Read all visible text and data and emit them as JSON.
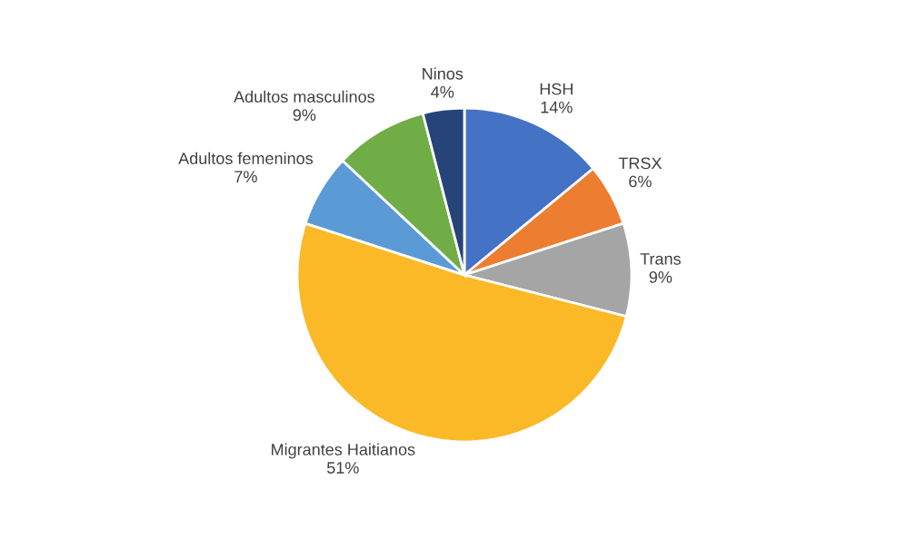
{
  "chart_data": {
    "type": "pie",
    "categories": [
      "HSH",
      "TRSX",
      "Trans",
      "Migrantes Haitianos",
      "Adultos femeninos",
      "Adultos masculinos",
      "Ninos"
    ],
    "values": [
      14,
      6,
      9,
      51,
      7,
      9,
      4
    ],
    "value_labels": [
      "14%",
      "6%",
      "9%",
      "51%",
      "7%",
      "9%",
      "4%"
    ],
    "colors": [
      "#4472c4",
      "#ed7d31",
      "#a5a5a5",
      "#fbb927",
      "#5b9bd5",
      "#70ad47",
      "#264478"
    ],
    "legend": false
  }
}
